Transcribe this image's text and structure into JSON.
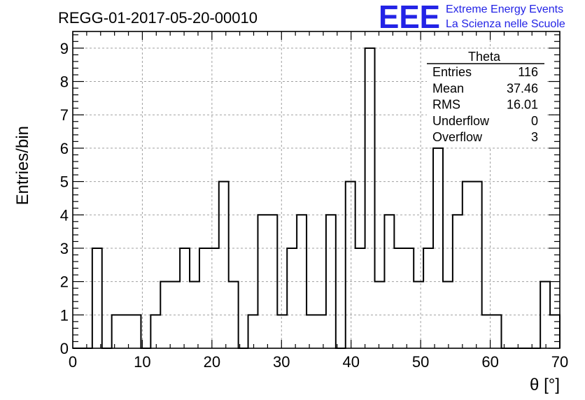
{
  "chart_data": {
    "type": "bar",
    "title": "REGG-01-2017-05-20-00010",
    "xlabel": "θ [°]",
    "ylabel": "Entries/bin",
    "xlim": [
      0,
      70
    ],
    "ylim": [
      0,
      9.5
    ],
    "xticks": [
      0,
      10,
      20,
      30,
      40,
      50,
      60,
      70
    ],
    "yticks": [
      0,
      1,
      2,
      3,
      4,
      5,
      6,
      7,
      8,
      9
    ],
    "grid": true,
    "bin_width": 1.4,
    "bins_x_start": [
      0,
      1.4,
      2.8,
      4.2,
      5.6,
      7.0,
      8.4,
      9.8,
      11.2,
      12.6,
      14.0,
      15.4,
      16.8,
      18.2,
      19.6,
      21.0,
      22.4,
      23.8,
      25.2,
      26.6,
      28.0,
      29.4,
      30.8,
      32.2,
      33.6,
      35.0,
      36.4,
      37.8,
      39.2,
      40.6,
      42.0,
      43.4,
      44.8,
      46.2,
      47.6,
      49.0,
      50.4,
      51.8,
      53.2,
      54.6,
      56.0,
      57.4,
      58.8,
      60.2,
      61.6,
      63.0,
      64.4,
      65.8,
      67.2,
      68.6
    ],
    "values": [
      0,
      0,
      3,
      0,
      1,
      1,
      1,
      0,
      1,
      2,
      2,
      3,
      2,
      3,
      3,
      5,
      2,
      0,
      1,
      4,
      4,
      1,
      3,
      4,
      1,
      1,
      4,
      0,
      5,
      3,
      9,
      2,
      4,
      3,
      3,
      2,
      3,
      6,
      2,
      4,
      5,
      5,
      1,
      1,
      0,
      0,
      0,
      0,
      2,
      1
    ],
    "stats_box": {
      "name": "Theta",
      "rows": [
        {
          "label": "Entries",
          "value": "116"
        },
        {
          "label": "Mean",
          "value": "37.46"
        },
        {
          "label": "RMS",
          "value": "16.01"
        },
        {
          "label": "Underflow",
          "value": "0"
        },
        {
          "label": "Overflow",
          "value": "3"
        }
      ]
    }
  },
  "logo": {
    "text": "EEE",
    "line1": "Extreme Energy Events",
    "line2": "La Scienza nelle Scuole",
    "color": "#2323e6"
  }
}
